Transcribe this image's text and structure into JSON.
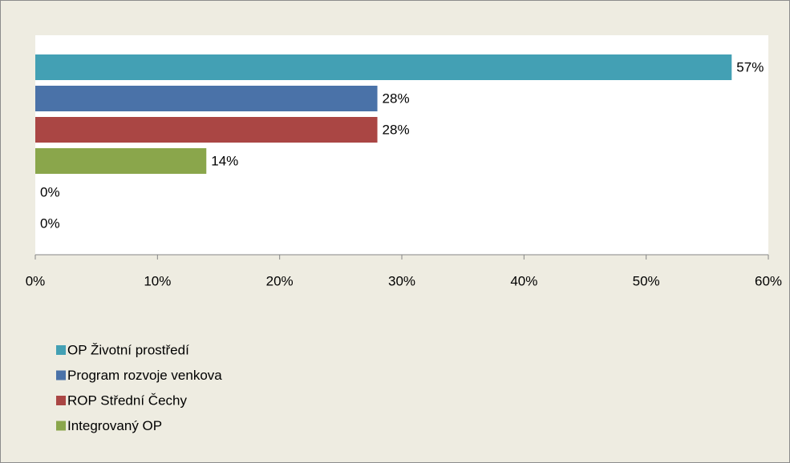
{
  "chart_data": {
    "type": "bar",
    "orientation": "horizontal",
    "series": [
      {
        "name": "OP Životní prostředí",
        "color": "#43a0b4",
        "values": [
          57
        ],
        "value_labels": [
          "57%"
        ]
      },
      {
        "name": "Program rozvoje venkova",
        "color": "#4a72a8",
        "values": [
          28
        ],
        "value_labels": [
          "28%"
        ]
      },
      {
        "name": "ROP Střední Čechy",
        "color": "#aa4644",
        "values": [
          28
        ],
        "value_labels": [
          "28%"
        ]
      },
      {
        "name": "Integrovaný OP",
        "color": "#8aa64b",
        "values": [
          14
        ],
        "value_labels": [
          "14%"
        ]
      },
      {
        "values": [
          0
        ],
        "value_labels": [
          "0%"
        ]
      },
      {
        "values": [
          0
        ],
        "value_labels": [
          "0%"
        ]
      }
    ],
    "xlim": [
      0,
      60
    ],
    "xticks": [
      {
        "value": 0,
        "label": "0%"
      },
      {
        "value": 10,
        "label": "10%"
      },
      {
        "value": 20,
        "label": "20%"
      },
      {
        "value": 30,
        "label": "30%"
      },
      {
        "value": 40,
        "label": "40%"
      },
      {
        "value": 50,
        "label": "50%"
      },
      {
        "value": 60,
        "label": "60%"
      }
    ],
    "legend": "bottom-left"
  }
}
